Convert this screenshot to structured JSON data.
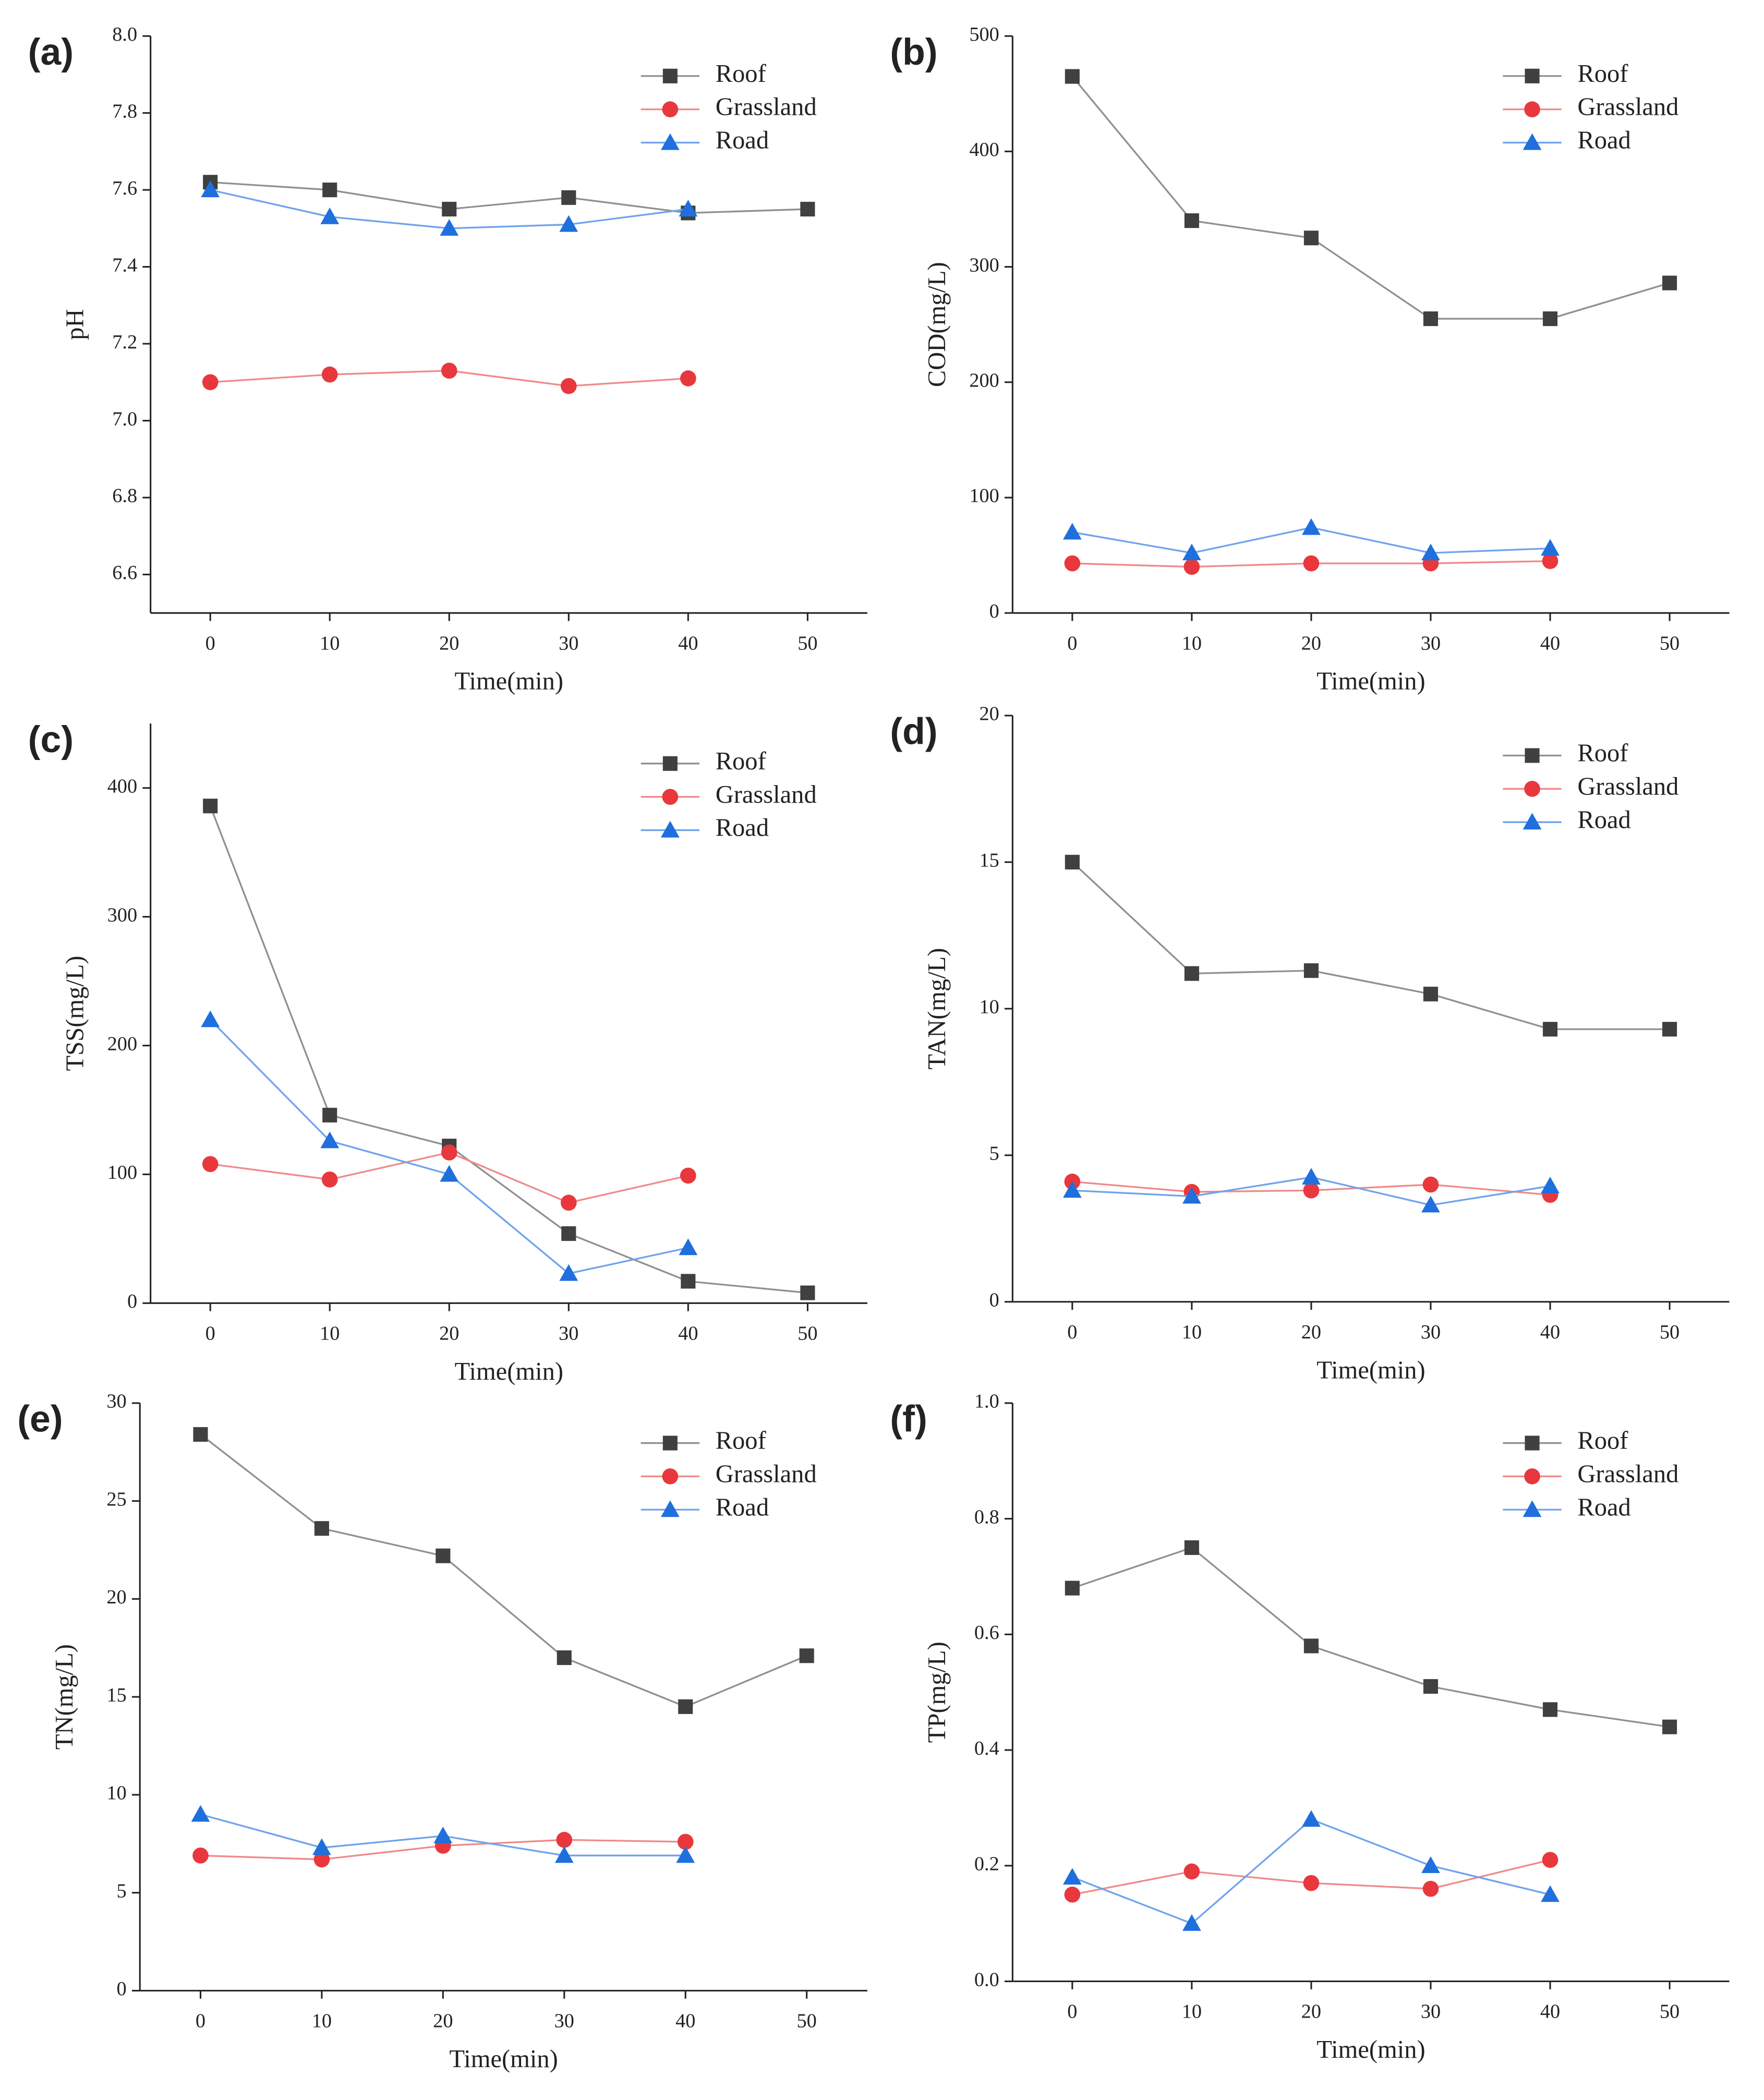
{
  "chart_data": [
    {
      "type": "line",
      "title": "(a)",
      "xlabel": "Time(min)",
      "ylabel": "pH",
      "legend": "upper right",
      "x": [
        0,
        10,
        20,
        30,
        40,
        50
      ],
      "xlim": [
        -5,
        55
      ],
      "xticks": [
        0,
        10,
        20,
        30,
        40,
        50
      ],
      "ylim": [
        6.5,
        8.0
      ],
      "yticks": [
        6.6,
        6.8,
        {
          "value": 7.0,
          "label": "7.0"
        },
        7.2,
        7.4,
        7.6,
        7.8,
        {
          "value": 8.0,
          "label": "8.0"
        }
      ],
      "series": [
        {
          "name": "Roof",
          "color": "#404040",
          "marker": "square",
          "values": [
            7.62,
            7.6,
            7.55,
            7.58,
            7.54,
            7.55
          ]
        },
        {
          "name": "Grassland",
          "color": "#e8383d",
          "marker": "circle",
          "values": [
            7.1,
            7.12,
            7.13,
            7.09,
            7.11,
            null
          ]
        },
        {
          "name": "Road",
          "color": "#1f6fdd",
          "marker": "triangle",
          "values": [
            7.6,
            7.53,
            7.5,
            7.51,
            7.55,
            null
          ]
        }
      ]
    },
    {
      "type": "line",
      "title": "(b)",
      "xlabel": "Time(min)",
      "ylabel": "COD(mg/L)",
      "legend": "upper right",
      "x": [
        0,
        10,
        20,
        30,
        40,
        50
      ],
      "xlim": [
        -5,
        55
      ],
      "xticks": [
        0,
        10,
        20,
        30,
        40,
        50
      ],
      "ylim": [
        0,
        500
      ],
      "yticks": [
        0,
        100,
        200,
        300,
        400,
        500
      ],
      "series": [
        {
          "name": "Roof",
          "color": "#404040",
          "marker": "square",
          "values": [
            465,
            340,
            325,
            255,
            255,
            286
          ]
        },
        {
          "name": "Grassland",
          "color": "#e8383d",
          "marker": "circle",
          "values": [
            43,
            40,
            43,
            43,
            45,
            null
          ]
        },
        {
          "name": "Road",
          "color": "#1f6fdd",
          "marker": "triangle",
          "values": [
            70,
            52,
            74,
            52,
            56,
            null
          ]
        }
      ]
    },
    {
      "type": "line",
      "title": "(c)",
      "xlabel": "Time(min)",
      "ylabel": "TSS(mg/L)",
      "legend": "upper right",
      "x": [
        0,
        10,
        20,
        30,
        40,
        50
      ],
      "xlim": [
        -5,
        55
      ],
      "xticks": [
        0,
        10,
        20,
        30,
        40,
        50
      ],
      "ylim": [
        0,
        450
      ],
      "yticks": [
        0,
        100,
        200,
        300,
        400
      ],
      "series": [
        {
          "name": "Roof",
          "color": "#404040",
          "marker": "square",
          "values": [
            386,
            146,
            122,
            54,
            17,
            8
          ]
        },
        {
          "name": "Grassland",
          "color": "#e8383d",
          "marker": "circle",
          "values": [
            108,
            96,
            117,
            78,
            99,
            null
          ]
        },
        {
          "name": "Road",
          "color": "#1f6fdd",
          "marker": "triangle",
          "values": [
            220,
            126,
            100,
            23,
            43,
            null
          ]
        }
      ]
    },
    {
      "type": "line",
      "title": "(d)",
      "xlabel": "Time(min)",
      "ylabel": "TAN(mg/L)",
      "legend": "upper right",
      "x": [
        0,
        10,
        20,
        30,
        40,
        50
      ],
      "xlim": [
        -5,
        55
      ],
      "xticks": [
        0,
        10,
        20,
        30,
        40,
        50
      ],
      "ylim": [
        0,
        20
      ],
      "yticks": [
        0,
        5,
        10,
        15,
        20
      ],
      "series": [
        {
          "name": "Roof",
          "color": "#404040",
          "marker": "square",
          "values": [
            15,
            11.2,
            11.3,
            10.5,
            9.3,
            9.3
          ]
        },
        {
          "name": "Grassland",
          "color": "#e8383d",
          "marker": "circle",
          "values": [
            4.1,
            3.75,
            3.8,
            4.0,
            3.65,
            null
          ]
        },
        {
          "name": "Road",
          "color": "#1f6fdd",
          "marker": "triangle",
          "values": [
            3.8,
            3.6,
            4.25,
            3.3,
            3.95,
            null
          ]
        }
      ]
    },
    {
      "type": "line",
      "title": "(e)",
      "xlabel": "Time(min)",
      "ylabel": "TN(mg/L)",
      "legend": "upper right",
      "x": [
        0,
        10,
        20,
        30,
        40,
        50
      ],
      "xlim": [
        -5,
        55
      ],
      "xticks": [
        0,
        10,
        20,
        30,
        40,
        50
      ],
      "ylim": [
        0,
        30
      ],
      "yticks": [
        0,
        5,
        10,
        15,
        20,
        25,
        30
      ],
      "series": [
        {
          "name": "Roof",
          "color": "#404040",
          "marker": "square",
          "values": [
            28.4,
            23.6,
            22.2,
            17.0,
            14.5,
            17.1
          ]
        },
        {
          "name": "Grassland",
          "color": "#e8383d",
          "marker": "circle",
          "values": [
            6.9,
            6.7,
            7.4,
            7.7,
            7.6,
            null
          ]
        },
        {
          "name": "Road",
          "color": "#1f6fdd",
          "marker": "triangle",
          "values": [
            9.0,
            7.3,
            7.9,
            6.9,
            6.9,
            null
          ]
        }
      ]
    },
    {
      "type": "line",
      "title": "(f)",
      "xlabel": "Time(min)",
      "ylabel": "TP(mg/L)",
      "legend": "upper right",
      "x": [
        0,
        10,
        20,
        30,
        40,
        50
      ],
      "xlim": [
        -5,
        55
      ],
      "xticks": [
        0,
        10,
        20,
        30,
        40,
        50
      ],
      "ylim": [
        0,
        1
      ],
      "yticks": [
        {
          "value": 0,
          "label": "0.0"
        },
        0.2,
        0.4,
        0.6,
        0.8,
        {
          "value": 1,
          "label": "1.0"
        }
      ],
      "series": [
        {
          "name": "Roof",
          "color": "#404040",
          "marker": "square",
          "values": [
            0.68,
            0.75,
            0.58,
            0.51,
            0.47,
            0.44
          ]
        },
        {
          "name": "Grassland",
          "color": "#e8383d",
          "marker": "circle",
          "values": [
            0.15,
            0.19,
            0.17,
            0.16,
            0.21,
            null
          ]
        },
        {
          "name": "Road",
          "color": "#1f6fdd",
          "marker": "triangle",
          "values": [
            0.18,
            0.1,
            0.28,
            0.2,
            0.15,
            null
          ]
        }
      ]
    }
  ]
}
